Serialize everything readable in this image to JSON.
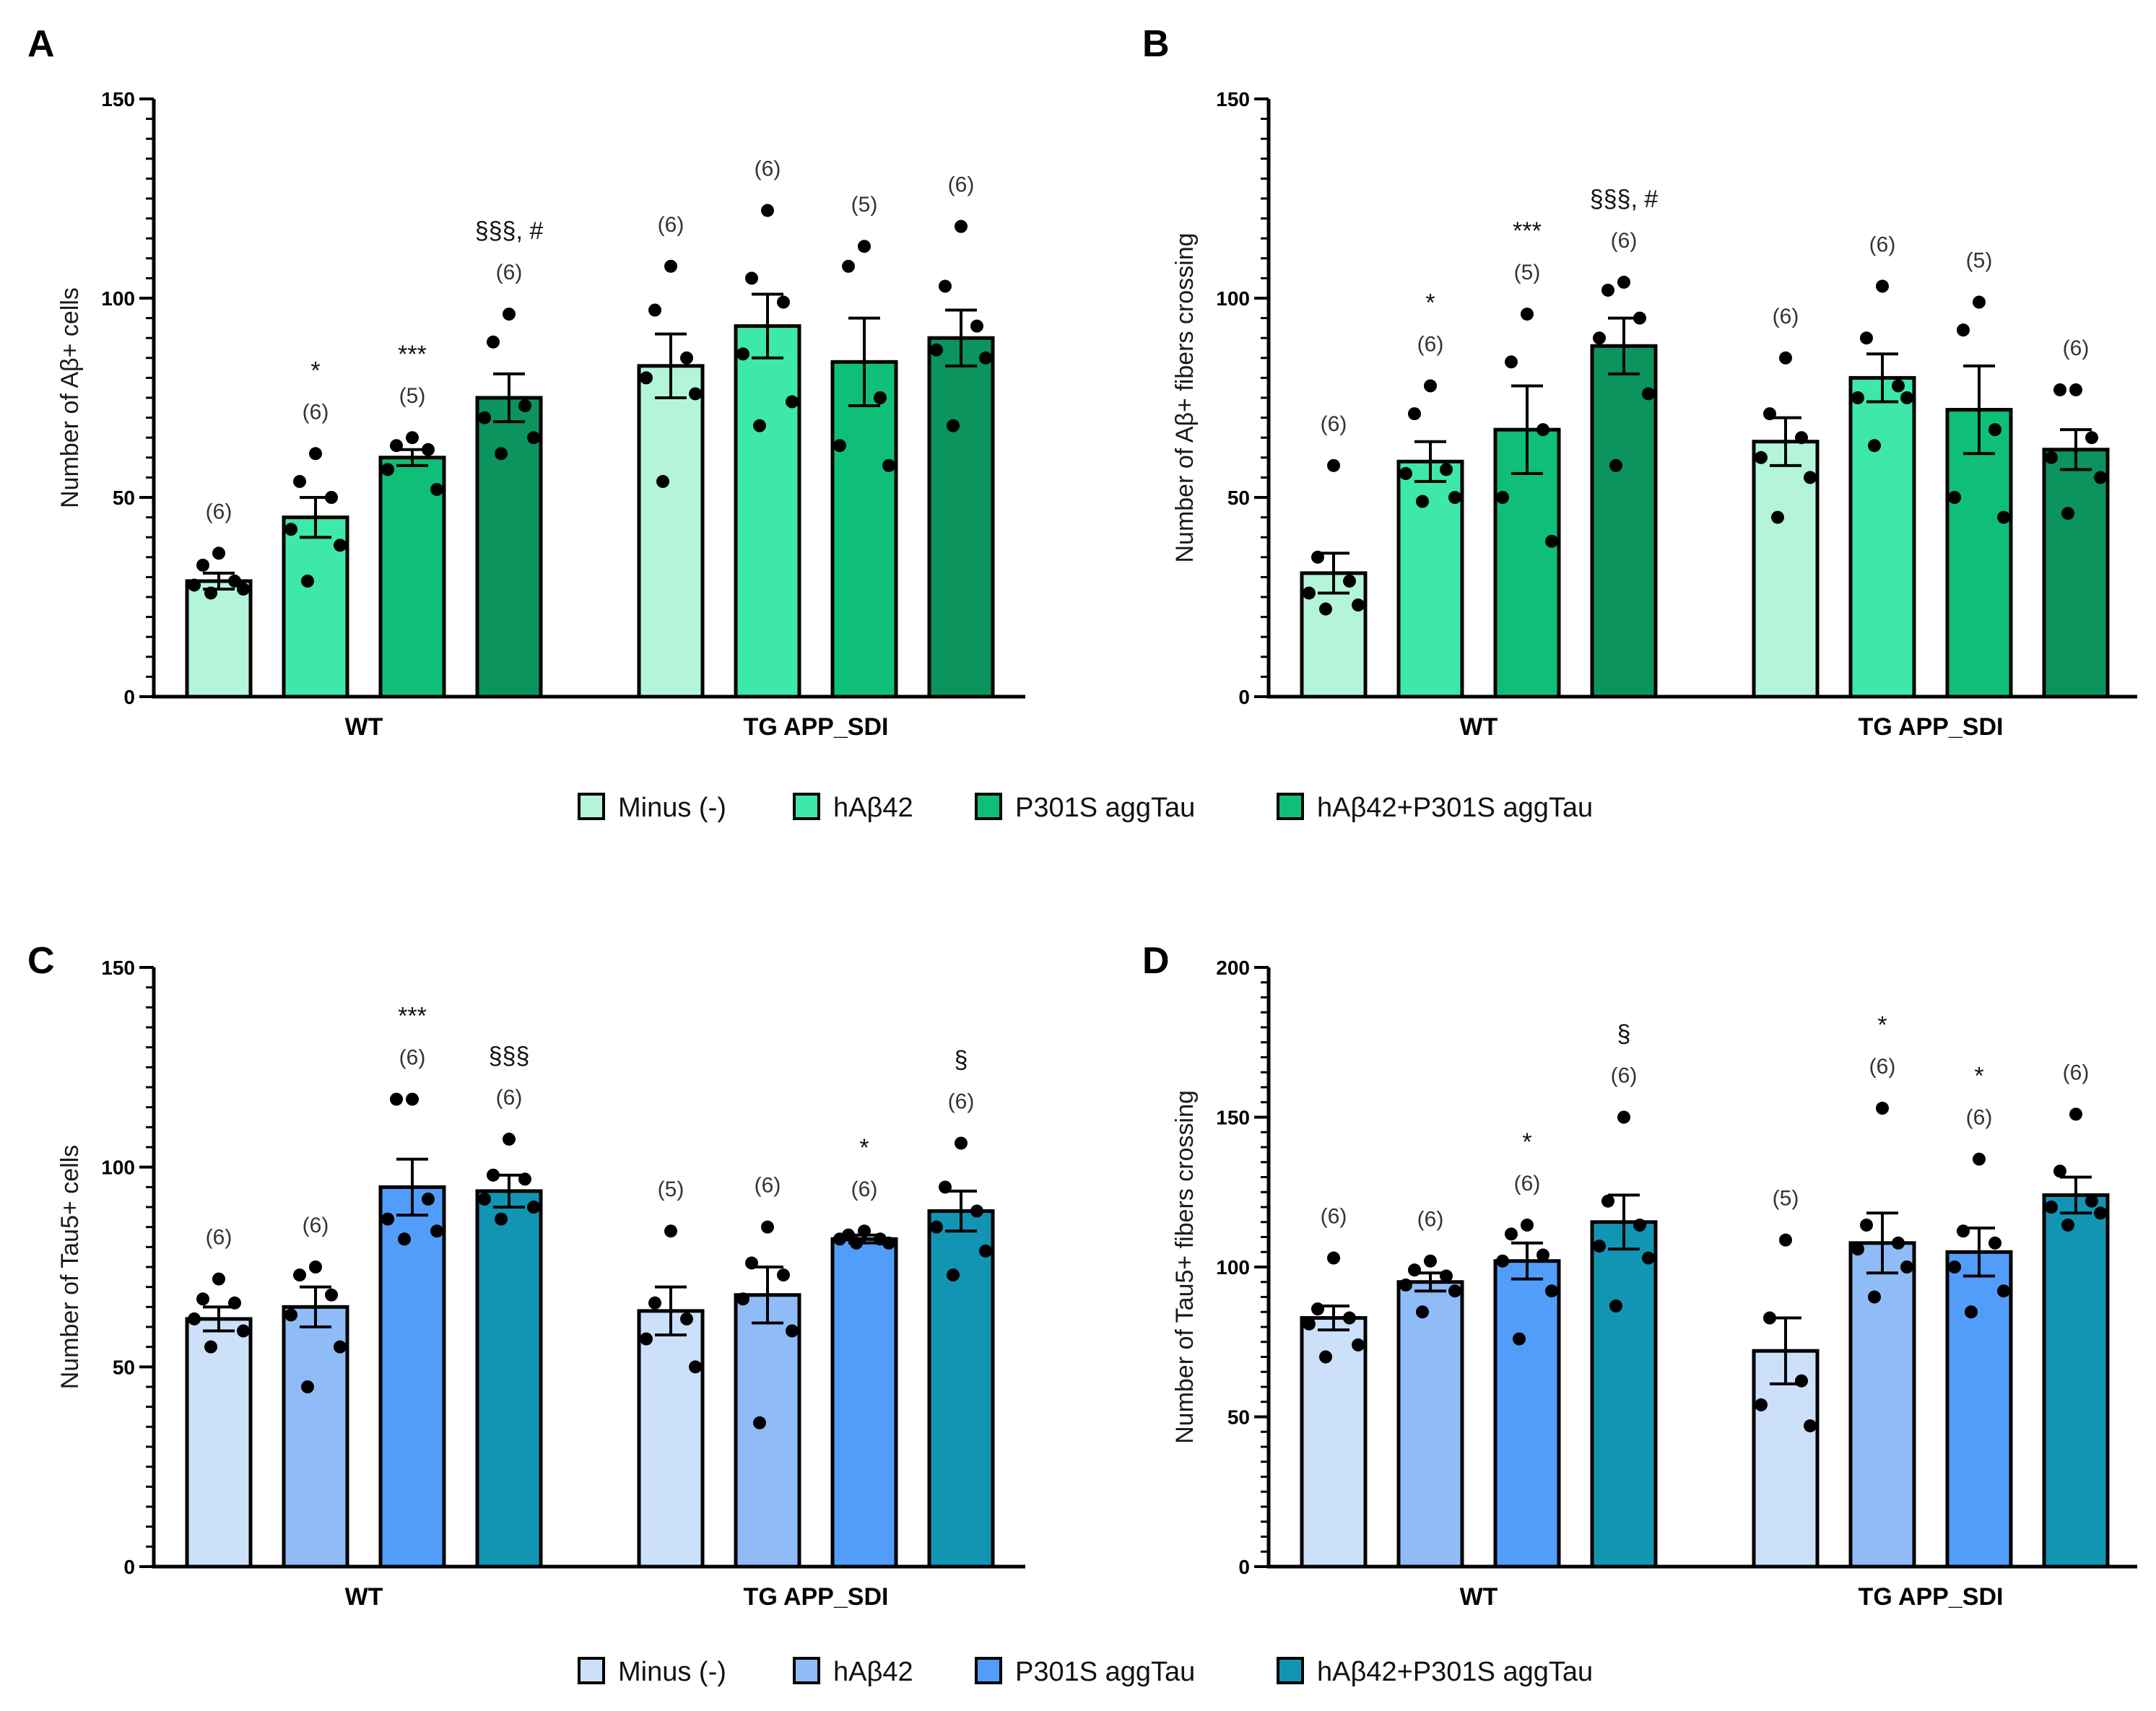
{
  "legend_top": {
    "items": [
      {
        "label": "Minus (-)",
        "color": "#b4f5da"
      },
      {
        "label": "hAβ42",
        "color": "#3de8a8"
      },
      {
        "label": "P301S aggTau",
        "color": "#0fbf78"
      },
      {
        "label": "hAβ42+P301S aggTau",
        "color": "#0fbf78"
      }
    ]
  },
  "legend_bottom": {
    "items": [
      {
        "label": "Minus (-)",
        "color": "#cce0fa"
      },
      {
        "label": "hAβ42",
        "color": "#8fbcf7"
      },
      {
        "label": "P301S aggTau",
        "color": "#519df9"
      },
      {
        "label": "hAβ42+P301S aggTau",
        "color": "#1295b3"
      }
    ]
  },
  "chart_data": [
    {
      "type": "bar",
      "panel": "A",
      "title": "",
      "xlabel": "",
      "ylabel": "Number of Aβ+ cells",
      "ylim": [
        0,
        150
      ],
      "yticks": [
        "0",
        "50",
        "100",
        "150"
      ],
      "groups": [
        "WT",
        "TG APP_SDI"
      ],
      "colors": [
        "#b4f5da",
        "#3de8a8",
        "#0fbf78",
        "#0b945e"
      ],
      "bars": [
        {
          "group": 0,
          "mean": 29,
          "sem": 2,
          "n": "(6)",
          "sig": "",
          "points": [
            36,
            33,
            29,
            28,
            27,
            26
          ]
        },
        {
          "group": 0,
          "mean": 45,
          "sem": 5,
          "n": "(6)",
          "sig": "*",
          "points": [
            61,
            54,
            50,
            42,
            38,
            29
          ]
        },
        {
          "group": 0,
          "mean": 60,
          "sem": 2,
          "n": "(5)",
          "sig": "***",
          "points": [
            65,
            63,
            62,
            57,
            52
          ]
        },
        {
          "group": 0,
          "mean": 75,
          "sem": 6,
          "n": "(6)",
          "sig": "§§§, #",
          "points": [
            96,
            89,
            73,
            70,
            65,
            61
          ]
        },
        {
          "group": 1,
          "mean": 83,
          "sem": 8,
          "n": "(6)",
          "sig": "",
          "points": [
            108,
            97,
            85,
            80,
            76,
            54
          ]
        },
        {
          "group": 1,
          "mean": 93,
          "sem": 8,
          "n": "(6)",
          "sig": "",
          "points": [
            122,
            105,
            99,
            86,
            74,
            68
          ]
        },
        {
          "group": 1,
          "mean": 84,
          "sem": 11,
          "n": "(5)",
          "sig": "",
          "points": [
            113,
            108,
            75,
            63,
            58
          ]
        },
        {
          "group": 1,
          "mean": 90,
          "sem": 7,
          "n": "(6)",
          "sig": "",
          "points": [
            118,
            103,
            93,
            87,
            85,
            68
          ]
        }
      ]
    },
    {
      "type": "bar",
      "panel": "B",
      "title": "",
      "xlabel": "",
      "ylabel": "Number of Aβ+ fibers crossing",
      "ylim": [
        0,
        150
      ],
      "yticks": [
        "0",
        "50",
        "100",
        "150"
      ],
      "groups": [
        "WT",
        "TG APP_SDI"
      ],
      "colors": [
        "#b4f5da",
        "#3de8a8",
        "#0fbf78",
        "#0b945e"
      ],
      "bars": [
        {
          "group": 0,
          "mean": 31,
          "sem": 5,
          "n": "(6)",
          "sig": "",
          "points": [
            58,
            35,
            29,
            26,
            23,
            22
          ]
        },
        {
          "group": 0,
          "mean": 59,
          "sem": 5,
          "n": "(6)",
          "sig": "*",
          "points": [
            78,
            71,
            57,
            56,
            50,
            49
          ]
        },
        {
          "group": 0,
          "mean": 67,
          "sem": 11,
          "n": "(5)",
          "sig": "***",
          "points": [
            96,
            84,
            67,
            50,
            39
          ]
        },
        {
          "group": 0,
          "mean": 88,
          "sem": 7,
          "n": "(6)",
          "sig": "§§§, #",
          "points": [
            104,
            102,
            95,
            90,
            76,
            58
          ]
        },
        {
          "group": 1,
          "mean": 64,
          "sem": 6,
          "n": "(6)",
          "sig": "",
          "points": [
            85,
            71,
            65,
            60,
            55,
            45
          ]
        },
        {
          "group": 1,
          "mean": 80,
          "sem": 6,
          "n": "(6)",
          "sig": "",
          "points": [
            103,
            90,
            78,
            75,
            75,
            63
          ]
        },
        {
          "group": 1,
          "mean": 72,
          "sem": 11,
          "n": "(5)",
          "sig": "",
          "points": [
            99,
            92,
            67,
            50,
            45
          ]
        },
        {
          "group": 1,
          "mean": 62,
          "sem": 5,
          "n": "(6)",
          "sig": "",
          "points": [
            77,
            77,
            65,
            60,
            55,
            46
          ]
        }
      ]
    },
    {
      "type": "bar",
      "panel": "C",
      "title": "",
      "xlabel": "",
      "ylabel": "Number of Tau5+ cells",
      "ylim": [
        0,
        150
      ],
      "yticks": [
        "0",
        "50",
        "100",
        "150"
      ],
      "groups": [
        "WT",
        "TG APP_SDI"
      ],
      "colors": [
        "#cce0fa",
        "#8fbcf7",
        "#519df9",
        "#1295b3"
      ],
      "bars": [
        {
          "group": 0,
          "mean": 62,
          "sem": 3,
          "n": "(6)",
          "sig": "",
          "points": [
            72,
            67,
            66,
            62,
            59,
            55
          ]
        },
        {
          "group": 0,
          "mean": 65,
          "sem": 5,
          "n": "(6)",
          "sig": "",
          "points": [
            75,
            73,
            68,
            63,
            55,
            45
          ]
        },
        {
          "group": 0,
          "mean": 95,
          "sem": 7,
          "n": "(6)",
          "sig": "***",
          "points": [
            117,
            117,
            92,
            87,
            84,
            82
          ]
        },
        {
          "group": 0,
          "mean": 94,
          "sem": 4,
          "n": "(6)",
          "sig": "§§§",
          "points": [
            107,
            98,
            97,
            92,
            90,
            87
          ]
        },
        {
          "group": 1,
          "mean": 64,
          "sem": 6,
          "n": "(5)",
          "sig": "",
          "points": [
            84,
            66,
            62,
            57,
            50
          ]
        },
        {
          "group": 1,
          "mean": 68,
          "sem": 7,
          "n": "(6)",
          "sig": "",
          "points": [
            85,
            76,
            73,
            67,
            59,
            36
          ]
        },
        {
          "group": 1,
          "mean": 82,
          "sem": 1,
          "n": "(6)",
          "sig": "*",
          "points": [
            84,
            83,
            82,
            82,
            81,
            81
          ]
        },
        {
          "group": 1,
          "mean": 89,
          "sem": 5,
          "n": "(6)",
          "sig": "§",
          "points": [
            106,
            95,
            89,
            85,
            79,
            73
          ]
        }
      ]
    },
    {
      "type": "bar",
      "panel": "D",
      "title": "",
      "xlabel": "",
      "ylabel": "Number of Tau5+ fibers crossing",
      "ylim": [
        0,
        200
      ],
      "yticks": [
        "0",
        "50",
        "100",
        "150",
        "200"
      ],
      "groups": [
        "WT",
        "TG APP_SDI"
      ],
      "colors": [
        "#cce0fa",
        "#8fbcf7",
        "#519df9",
        "#1295b3"
      ],
      "bars": [
        {
          "group": 0,
          "mean": 83,
          "sem": 4,
          "n": "(6)",
          "sig": "",
          "points": [
            103,
            86,
            83,
            81,
            74,
            70
          ]
        },
        {
          "group": 0,
          "mean": 95,
          "sem": 3,
          "n": "(6)",
          "sig": "",
          "points": [
            102,
            99,
            97,
            94,
            92,
            85
          ]
        },
        {
          "group": 0,
          "mean": 102,
          "sem": 6,
          "n": "(6)",
          "sig": "*",
          "points": [
            114,
            111,
            104,
            102,
            92,
            76
          ]
        },
        {
          "group": 0,
          "mean": 115,
          "sem": 9,
          "n": "(6)",
          "sig": "§",
          "points": [
            150,
            122,
            114,
            107,
            103,
            87
          ]
        },
        {
          "group": 1,
          "mean": 72,
          "sem": 11,
          "n": "(5)",
          "sig": "",
          "points": [
            109,
            83,
            62,
            54,
            47
          ]
        },
        {
          "group": 1,
          "mean": 108,
          "sem": 10,
          "n": "(6)",
          "sig": "*",
          "points": [
            153,
            114,
            108,
            106,
            100,
            90
          ]
        },
        {
          "group": 1,
          "mean": 105,
          "sem": 8,
          "n": "(6)",
          "sig": "*",
          "points": [
            136,
            112,
            108,
            100,
            92,
            85
          ]
        },
        {
          "group": 1,
          "mean": 124,
          "sem": 6,
          "n": "(6)",
          "sig": "",
          "points": [
            151,
            132,
            122,
            120,
            118,
            114
          ]
        }
      ]
    }
  ]
}
